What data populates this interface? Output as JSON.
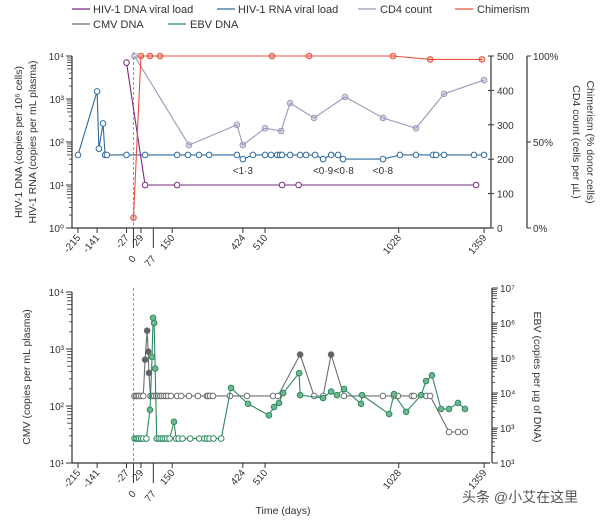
{
  "legend": [
    {
      "label": "HIV-1 DNA viral load",
      "color": "#7b2a80"
    },
    {
      "label": "HIV-1 RNA viral load",
      "color": "#2d6aa0"
    },
    {
      "label": "CD4 count",
      "color": "#9c98b8"
    },
    {
      "label": "Chimerism",
      "color": "#e8503f"
    },
    {
      "label": "CMV DNA",
      "color": "#6b6e70"
    },
    {
      "label": "EBV DNA",
      "color": "#2e8a5e"
    }
  ],
  "watermark": "头条 @小艾在这里",
  "chart_data": [
    {
      "type": "line",
      "x_ticks": [
        "-215",
        "-141",
        "-27",
        "0",
        "29",
        "77",
        "150",
        "424",
        "510",
        "1028",
        "1359"
      ],
      "x_tick_values": [
        -215,
        -141,
        -27,
        0,
        29,
        77,
        150,
        424,
        510,
        1028,
        1359
      ],
      "left_ylabel_1": "HIV-1 DNA (copies per 10⁶ cells)",
      "left_ylabel_2": "HIV-1 RNA (copies per mL plasma)",
      "left_y_scale": "log",
      "left_ylim": [
        1,
        10000
      ],
      "left_y_ticks": [
        "10⁰",
        "10¹",
        "10²",
        "10³",
        "10⁴"
      ],
      "right_ylabel_1": "Chimerism (% donor cells)",
      "right_ylabel_2": "CD4 count (cells per µL)",
      "cd4_ylim": [
        0,
        500
      ],
      "cd4_ticks": [
        "0",
        "100",
        "200",
        "300",
        "400",
        "500"
      ],
      "chimerism_ylim": [
        0,
        100
      ],
      "chimerism_ticks": [
        "0%",
        "50%",
        "100%"
      ],
      "transplant_day": 0,
      "annotations": [
        {
          "text": "<1·3",
          "day": 424
        },
        {
          "text": "<0·9",
          "day": 735
        },
        {
          "text": "<0·8",
          "day": 815
        },
        {
          "text": "<0·8",
          "day": 967
        }
      ],
      "series": [
        {
          "name": "HIV-1 DNA viral load",
          "axis": "left",
          "color": "#7b2a80",
          "points": [
            [
              -27,
              7000
            ],
            [
              45,
              10
            ],
            [
              169,
              10
            ],
            [
              576,
              10
            ],
            [
              640,
              10
            ],
            [
              1328,
              10
            ]
          ]
        },
        {
          "name": "HIV-1 RNA viral load",
          "axis": "left",
          "color": "#2d6aa0",
          "points": [
            [
              -215,
              50
            ],
            [
              -141,
              1500
            ],
            [
              -134,
              70
            ],
            [
              -118,
              270
            ],
            [
              -110,
              50
            ],
            [
              -103,
              50
            ],
            [
              -27,
              50
            ],
            [
              45,
              50
            ],
            [
              169,
              50
            ],
            [
              211,
              50
            ],
            [
              254,
              50
            ],
            [
              293,
              50
            ],
            [
              401,
              50
            ],
            [
              424,
              40
            ],
            [
              463,
              50
            ],
            [
              510,
              50
            ],
            [
              533,
              50
            ],
            [
              557,
              50
            ],
            [
              568,
              50
            ],
            [
              576,
              50
            ],
            [
              607,
              50
            ],
            [
              646,
              50
            ],
            [
              669,
              50
            ],
            [
              704,
              50
            ],
            [
              735,
              40
            ],
            [
              766,
              50
            ],
            [
              793,
              50
            ],
            [
              812,
              40
            ],
            [
              967,
              40
            ],
            [
              1033,
              50
            ],
            [
              1095,
              50
            ],
            [
              1161,
              50
            ],
            [
              1173,
              50
            ],
            [
              1204,
              50
            ],
            [
              1320,
              50
            ],
            [
              1359,
              50
            ]
          ]
        },
        {
          "name": "CD4 count",
          "axis": "cd4",
          "color": "#9c98b8",
          "points": [
            [
              4,
              500
            ],
            [
              215,
              241
            ],
            [
              401,
              300
            ],
            [
              424,
              241
            ],
            [
              510,
              290
            ],
            [
              572,
              282
            ],
            [
              607,
              363
            ],
            [
              700,
              320
            ],
            [
              820,
              381
            ],
            [
              967,
              320
            ],
            [
              1095,
              290
            ],
            [
              1204,
              390
            ],
            [
              1359,
              430
            ]
          ]
        },
        {
          "name": "Chimerism",
          "axis": "chimerism",
          "color": "#e8503f",
          "points": [
            [
              0,
              6
            ],
            [
              29,
              100
            ],
            [
              64,
              100
            ],
            [
              103,
              100
            ],
            [
              537,
              100
            ],
            [
              681,
              100
            ],
            [
              1006,
              100
            ],
            [
              1150,
              98
            ],
            [
              1351,
              98
            ]
          ]
        }
      ]
    },
    {
      "type": "line",
      "x_ticks": [
        "-215",
        "-141",
        "-27",
        "0",
        "29",
        "77",
        "150",
        "424",
        "510",
        "1028",
        "1359"
      ],
      "x_tick_values": [
        -215,
        -141,
        -27,
        0,
        29,
        77,
        150,
        424,
        510,
        1028,
        1359
      ],
      "xlabel": "Time (days)",
      "left_ylabel": "CMV (copies per mL plasma)",
      "left_y_scale": "log",
      "left_ylim": [
        10,
        10000
      ],
      "left_y_ticks": [
        "10¹",
        "10²",
        "10³",
        "10⁴"
      ],
      "right_ylabel": "EBV (copies per µg of DNA)",
      "right_y_scale": "log",
      "right_ylim": [
        100,
        10000000
      ],
      "right_y_ticks": [
        "10³",
        "10³",
        "10⁴",
        "10⁵",
        "10⁶",
        "10⁷"
      ],
      "transplant_day": 0,
      "series": [
        {
          "name": "CMV DNA",
          "axis": "left",
          "color": "#6b6e70",
          "points": [
            [
              4,
              150,
              0
            ],
            [
              10,
              150,
              0
            ],
            [
              16,
              150,
              0
            ],
            [
              22,
              150,
              0
            ],
            [
              30,
              150,
              0
            ],
            [
              38,
              150,
              0
            ],
            [
              45,
              650,
              1
            ],
            [
              53,
              2100,
              1
            ],
            [
              57,
              900,
              1
            ],
            [
              60,
              380,
              1
            ],
            [
              66,
              150,
              0
            ],
            [
              72,
              150,
              0
            ],
            [
              80,
              150,
              0
            ],
            [
              88,
              150,
              0
            ],
            [
              95,
              150,
              0
            ],
            [
              103,
              150,
              0
            ],
            [
              110,
              150,
              0
            ],
            [
              118,
              150,
              0
            ],
            [
              126,
              150,
              0
            ],
            [
              134,
              150,
              0
            ],
            [
              145,
              150,
              0
            ],
            [
              169,
              150,
              0
            ],
            [
              185,
              150,
              0
            ],
            [
              215,
              150,
              0
            ],
            [
              250,
              150,
              0
            ],
            [
              285,
              150,
              0
            ],
            [
              289,
              150,
              0
            ],
            [
              297,
              150,
              0
            ],
            [
              308,
              150,
              0
            ],
            [
              374,
              150,
              0
            ],
            [
              440,
              150,
              0
            ],
            [
              541,
              150,
              0
            ],
            [
              560,
              150,
              0
            ],
            [
              646,
              800,
              1
            ],
            [
              700,
              150,
              0
            ],
            [
              735,
              150,
              0
            ],
            [
              766,
              800,
              1
            ],
            [
              816,
              150,
              0
            ],
            [
              967,
              150,
              0
            ],
            [
              1010,
              150,
              0
            ],
            [
              1025,
              150,
              0
            ],
            [
              1079,
              150,
              0
            ],
            [
              1087,
              150,
              0
            ],
            [
              1135,
              150,
              0
            ],
            [
              1150,
              150,
              0
            ],
            [
              1223,
              35,
              0
            ],
            [
              1258,
              35,
              0
            ],
            [
              1285,
              35,
              0
            ]
          ]
        },
        {
          "name": "EBV DNA",
          "axis": "right",
          "color": "#2e8a5e",
          "points": [
            [
              4,
              500,
              0
            ],
            [
              10,
              500,
              0
            ],
            [
              16,
              500,
              0
            ],
            [
              22,
              500,
              0
            ],
            [
              30,
              500,
              0
            ],
            [
              38,
              500,
              0
            ],
            [
              50,
              500,
              0
            ],
            [
              64,
              3300,
              1
            ],
            [
              72,
              107000,
              1
            ],
            [
              76,
              1400000,
              1
            ],
            [
              80,
              1000000,
              1
            ],
            [
              84,
              50000,
              1
            ],
            [
              90,
              500,
              0
            ],
            [
              98,
              500,
              0
            ],
            [
              106,
              500,
              0
            ],
            [
              114,
              500,
              0
            ],
            [
              122,
              500,
              0
            ],
            [
              130,
              500,
              0
            ],
            [
              140,
              500,
              0
            ],
            [
              157,
              1500,
              1
            ],
            [
              165,
              500,
              0
            ],
            [
              175,
              500,
              0
            ],
            [
              190,
              500,
              0
            ],
            [
              220,
              500,
              0
            ],
            [
              255,
              500,
              0
            ],
            [
              275,
              500,
              0
            ],
            [
              285,
              500,
              0
            ],
            [
              295,
              500,
              0
            ],
            [
              310,
              500,
              0
            ],
            [
              340,
              500,
              0
            ],
            [
              378,
              14000,
              1
            ],
            [
              444,
              4900,
              1
            ],
            [
              525,
              2300,
              1
            ],
            [
              545,
              4000,
              1
            ],
            [
              564,
              5200,
              1
            ],
            [
              580,
              10000,
              1
            ],
            [
              642,
              37000,
              1
            ],
            [
              646,
              8700,
              1
            ],
            [
              735,
              7200,
              1
            ],
            [
              766,
              11000,
              1
            ],
            [
              789,
              8700,
              1
            ],
            [
              816,
              13000,
              1
            ],
            [
              882,
              4900,
              1
            ],
            [
              886,
              8700,
              1
            ],
            [
              991,
              2500,
              1
            ],
            [
              1010,
              9300,
              1
            ],
            [
              1057,
              2900,
              1
            ],
            [
              1115,
              8700,
              1
            ],
            [
              1134,
              22000,
              1
            ],
            [
              1157,
              32000,
              1
            ],
            [
              1192,
              3500,
              1
            ],
            [
              1223,
              3500,
              1
            ],
            [
              1258,
              5200,
              1
            ],
            [
              1285,
              3500,
              1
            ]
          ]
        }
      ]
    }
  ]
}
